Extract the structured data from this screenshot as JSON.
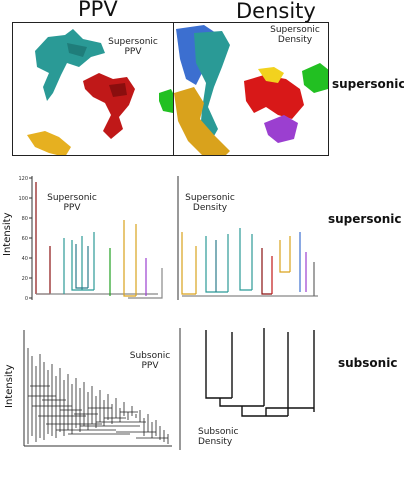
{
  "columns": {
    "left": "PPV",
    "right": "Density"
  },
  "rows": {
    "row1": "supersonic",
    "row2": "supersonic",
    "row3": "subsonic"
  },
  "panels": {
    "ppv_image": {
      "label_line1": "Supersonic",
      "label_line2": "PPV"
    },
    "density_image": {
      "label_line1": "Supersonic",
      "label_line2": "Density"
    },
    "ppv_dendro_super": {
      "label_line1": "Supersonic",
      "label_line2": "PPV"
    },
    "density_dendro_super": {
      "label_line1": "Supersonic",
      "label_line2": "Density"
    },
    "ppv_dendro_sub": {
      "label_line1": "Subsonic",
      "label_line2": "PPV"
    },
    "density_dendro_sub": {
      "label_line1": "Subsonic",
      "label_line2": "Density"
    }
  },
  "axis": {
    "ylabel": "Intensity",
    "ticks": [
      "120",
      "100",
      "80",
      "60",
      "40",
      "20",
      "0"
    ]
  },
  "colors": {
    "teal": "#2a9a96",
    "red": "#c01818",
    "green": "#22c022",
    "orange": "#e6b020",
    "blue": "#3c6fd0",
    "purple": "#9b3fd0",
    "gold": "#d9a21c"
  }
}
